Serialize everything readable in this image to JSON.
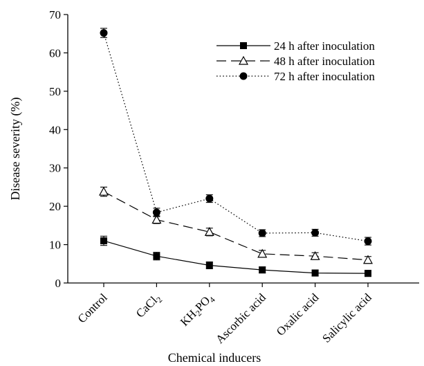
{
  "chart_data": {
    "type": "line",
    "title": "",
    "xlabel": "Chemical inducers",
    "ylabel": "Disease severity (%)",
    "ylim": [
      0,
      70
    ],
    "yticks": [
      0,
      10,
      20,
      30,
      40,
      50,
      60,
      70
    ],
    "grid": false,
    "legend_position": "top-right",
    "categories": [
      {
        "main": "Control",
        "parts": [
          {
            "t": "Control",
            "sub": false
          }
        ]
      },
      {
        "main": "CaCl2",
        "parts": [
          {
            "t": "CaCl",
            "sub": false
          },
          {
            "t": "2",
            "sub": true
          }
        ]
      },
      {
        "main": "KH2PO4",
        "parts": [
          {
            "t": "KH",
            "sub": false
          },
          {
            "t": "2",
            "sub": true
          },
          {
            "t": "PO",
            "sub": false
          },
          {
            "t": "4",
            "sub": true
          }
        ]
      },
      {
        "main": "Ascorbic acid",
        "parts": [
          {
            "t": "Ascorbic acid",
            "sub": false
          }
        ]
      },
      {
        "main": "Oxalic acid",
        "parts": [
          {
            "t": "Oxalic acid",
            "sub": false
          }
        ]
      },
      {
        "main": "Salicylic acid",
        "parts": [
          {
            "t": "Salicylic acid",
            "sub": false
          }
        ]
      }
    ],
    "series": [
      {
        "name": "24 h after inoculation",
        "marker": "square",
        "line": "solid",
        "values": [
          11.0,
          7.0,
          4.6,
          3.4,
          2.6,
          2.5
        ],
        "errors": [
          1.2,
          1.0,
          0.9,
          0.8,
          0.8,
          0.8
        ]
      },
      {
        "name": "48 h after inoculation",
        "marker": "triangle",
        "line": "dashed",
        "values": [
          23.8,
          16.5,
          13.3,
          7.6,
          7.0,
          6.0
        ],
        "errors": [
          1.2,
          1.0,
          1.0,
          0.9,
          0.9,
          0.9
        ]
      },
      {
        "name": "72 h after inoculation",
        "marker": "circle",
        "line": "dotted",
        "values": [
          65.2,
          18.4,
          22.0,
          13.0,
          13.1,
          10.9
        ],
        "errors": [
          1.2,
          1.1,
          1.0,
          0.9,
          0.9,
          1.0
        ]
      }
    ]
  }
}
